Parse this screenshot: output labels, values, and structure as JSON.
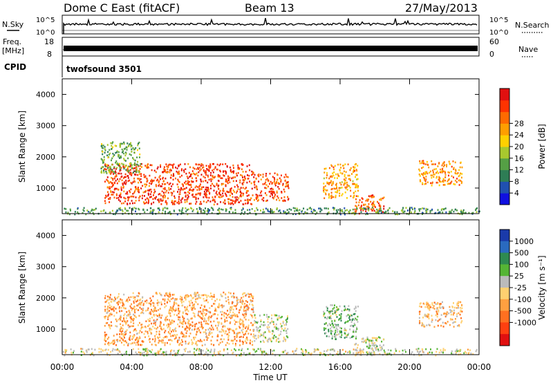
{
  "header": {
    "radar": "Dome C East (fitACF)",
    "beam": "Beam 13",
    "date": "27/May/2013"
  },
  "top_panels": {
    "nsky": {
      "label": "N.Sky",
      "tick_top": "10^5",
      "tick_bottom": "10^0"
    },
    "nsearch": {
      "label": "N.Search",
      "tick_top": "10^5",
      "tick_bottom": "10^0"
    },
    "freq": {
      "label_line1": "Freq.",
      "label_line2": "[MHz]",
      "tick_top": "18",
      "tick_bottom": "8"
    },
    "nave": {
      "label": "Nave",
      "tick_top": "60",
      "tick_bottom": "0"
    },
    "cpid": {
      "label": "CPID",
      "value": "twofsound 3501"
    }
  },
  "x_axis": {
    "label": "Time UT",
    "ticks": [
      "00:00",
      "04:00",
      "08:00",
      "12:00",
      "16:00",
      "20:00",
      "00:00"
    ]
  },
  "y_axis": {
    "label": "Slant Range [km]",
    "ticks": [
      "1000",
      "2000",
      "3000",
      "4000"
    ]
  },
  "colorbars": {
    "power": {
      "label": "Power [dB]",
      "ticks": [
        "4",
        "8",
        "12",
        "16",
        "20",
        "24",
        "28"
      ],
      "colors": [
        "#1010e0",
        "#2050b0",
        "#2e7d55",
        "#55a045",
        "#a8c82e",
        "#ffd000",
        "#ff9e00",
        "#ff6a00",
        "#ff3300",
        "#e01010"
      ]
    },
    "velocity": {
      "label": "Velocity [m s⁻¹]",
      "ticks": [
        "1000",
        "500",
        "100",
        "25",
        "-25",
        "-100",
        "-500",
        "-1000"
      ],
      "colors": [
        "#1a3aaa",
        "#2a6abf",
        "#2e8a50",
        "#55b535",
        "#bbbbbb",
        "#ffd070",
        "#ffa040",
        "#ff7020",
        "#ff4010",
        "#e01010"
      ]
    }
  },
  "chart_data": [
    {
      "type": "heatmap",
      "title": "Power [dB]",
      "xlabel": "Time UT",
      "ylabel": "Slant Range [km]",
      "xlim": [
        0,
        24
      ],
      "ylim": [
        180,
        4500
      ],
      "zlim": [
        0,
        30
      ],
      "scatter_regions": [
        {
          "t0": 2.4,
          "t1": 11.0,
          "r0": 500,
          "r1": 1800,
          "value": 26
        },
        {
          "t0": 2.2,
          "t1": 4.5,
          "r0": 1500,
          "r1": 2500,
          "value": 11
        },
        {
          "t0": 11.0,
          "t1": 13.0,
          "r0": 600,
          "r1": 1500,
          "value": 25
        },
        {
          "t0": 15.0,
          "t1": 17.0,
          "r0": 700,
          "r1": 1800,
          "value": 20
        },
        {
          "t0": 16.8,
          "t1": 18.5,
          "r0": 200,
          "r1": 800,
          "value": 24
        },
        {
          "t0": 20.5,
          "t1": 23.0,
          "r0": 1100,
          "r1": 1900,
          "value": 21
        },
        {
          "t0": 0,
          "t1": 24,
          "r0": 180,
          "r1": 400,
          "value": 9
        }
      ]
    },
    {
      "type": "heatmap",
      "title": "Velocity [m s⁻¹]",
      "xlabel": "Time UT",
      "ylabel": "Slant Range [km]",
      "xlim": [
        0,
        24
      ],
      "ylim": [
        180,
        4500
      ],
      "zlim": [
        -1000,
        1000
      ],
      "scatter_regions": [
        {
          "t0": 2.4,
          "t1": 11.0,
          "r0": 500,
          "r1": 2200,
          "value": -300
        },
        {
          "t0": 11.0,
          "t1": 13.0,
          "r0": 600,
          "r1": 1500,
          "value": 120
        },
        {
          "t0": 15.0,
          "t1": 17.0,
          "r0": 700,
          "r1": 1800,
          "value": 300
        },
        {
          "t0": 16.8,
          "t1": 18.5,
          "r0": 200,
          "r1": 800,
          "value": 150
        },
        {
          "t0": 20.5,
          "t1": 23.0,
          "r0": 1100,
          "r1": 1900,
          "value": -200
        },
        {
          "t0": 0,
          "t1": 24,
          "r0": 180,
          "r1": 400,
          "value": 60
        }
      ]
    }
  ]
}
